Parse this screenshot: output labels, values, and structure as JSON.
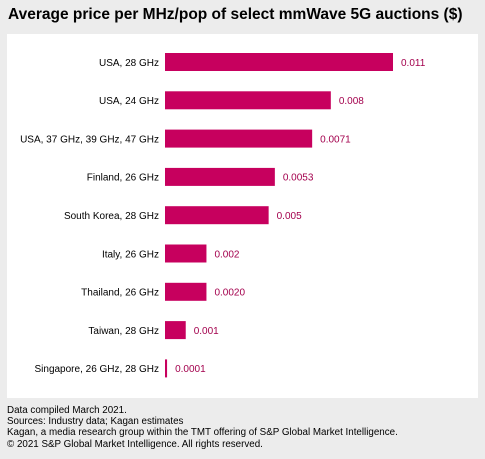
{
  "chart_data": {
    "type": "bar",
    "orientation": "horizontal",
    "title": "Average price per MHz/pop of select mmWave 5G auctions ($)",
    "categories": [
      "USA, 28 GHz",
      "USA, 24 GHz",
      "USA, 37 GHz, 39 GHz, 47 GHz",
      "Finland, 26 GHz",
      "South Korea, 28 GHz",
      "Italy, 26 GHz",
      "Thailand, 26 GHz",
      "Taiwan, 28 GHz",
      "Singapore, 26 GHz, 28 GHz"
    ],
    "values": [
      0.011,
      0.008,
      0.0071,
      0.0053,
      0.005,
      0.002,
      0.002,
      0.001,
      0.0001
    ],
    "value_labels": [
      "0.011",
      "0.008",
      "0.0071",
      "0.0053",
      "0.005",
      "0.002",
      "0.0020",
      "0.001",
      "0.0001"
    ],
    "xlim": [
      0,
      0.011
    ],
    "grid": false,
    "bar_color": "#c7005e",
    "label_color": "#a3004d"
  },
  "footer": {
    "line1": "Data compiled March 2021.",
    "line2": "Sources: Industry data; Kagan estimates",
    "line3": "Kagan, a media research group within the TMT offering of S&P Global Market Intelligence.",
    "line4": "© 2021 S&P Global Market Intelligence. All rights reserved."
  }
}
